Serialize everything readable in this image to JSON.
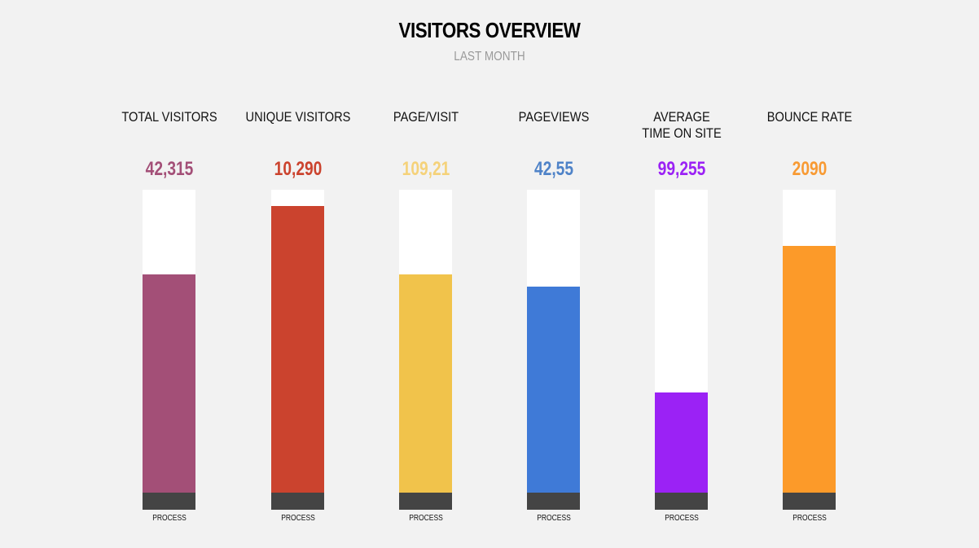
{
  "header": {
    "title": "VISITORS OVERVIEW",
    "subtitle": "LAST MONTH"
  },
  "chart_data": {
    "type": "bar",
    "title": "VISITORS OVERVIEW",
    "subtitle": "LAST MONTH",
    "ylim": [
      0,
      1
    ],
    "bars": [
      {
        "label": "TOTAL VISITORS",
        "value_text": "42,315",
        "fill_fraction": 0.72,
        "color": "#a34f77",
        "value_color": "#a34f77",
        "footer": "PROCESS"
      },
      {
        "label": "UNIQUE VISITORS",
        "value_text": "10,290",
        "fill_fraction": 0.945,
        "color": "#cb432e",
        "value_color": "#cb432e",
        "footer": "PROCESS"
      },
      {
        "label": "PAGE/VISIT",
        "value_text": "109,21",
        "fill_fraction": 0.72,
        "color": "#f1c34b",
        "value_color": "#f5d27a",
        "footer": "PROCESS"
      },
      {
        "label": "PAGEVIEWS",
        "value_text": "42,55",
        "fill_fraction": 0.68,
        "color": "#3f7ad7",
        "value_color": "#4f83c8",
        "footer": "PROCESS"
      },
      {
        "label": "AVERAGE TIME ON SITE",
        "value_text": "99,255",
        "fill_fraction": 0.33,
        "color": "#9b22f5",
        "value_color": "#9b22f5",
        "footer": "PROCESS"
      },
      {
        "label": "BOUNCE RATE",
        "value_text": "2090",
        "fill_fraction": 0.815,
        "color": "#fc9a29",
        "value_color": "#f89a33",
        "footer": "PROCESS"
      }
    ]
  }
}
